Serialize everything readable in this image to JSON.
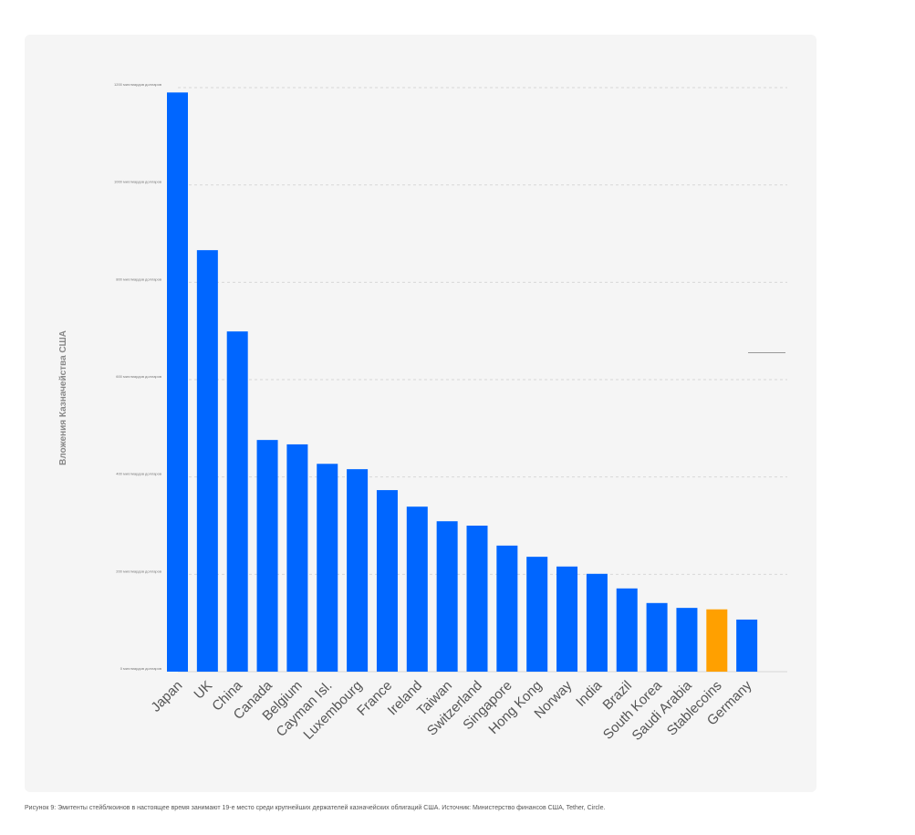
{
  "chart_data": {
    "type": "bar",
    "title": "",
    "ylabel": "Вложения Казначейства США",
    "xlabel": "",
    "ylim": [
      0,
      1200
    ],
    "grid": true,
    "yticks": [
      {
        "value": 0,
        "label": "0 миллиардов долларов"
      },
      {
        "value": 200,
        "label": "200 миллиардов долларов"
      },
      {
        "value": 400,
        "label": "400 миллиардов долларов"
      },
      {
        "value": 600,
        "label": "600 миллиардов долларов"
      },
      {
        "value": 800,
        "label": "800 миллиардов долларов"
      },
      {
        "value": 1000,
        "label": "1000 миллиардов долларов"
      },
      {
        "value": 1200,
        "label": "1200 миллиардов долларов"
      }
    ],
    "categories": [
      "Japan",
      "UK",
      "China",
      "Canada",
      "Belgium",
      "Cayman Isl.",
      "Luxembourg",
      "France",
      "Ireland",
      "Taiwan",
      "Switzerland",
      "Singapore",
      "Hong Kong",
      "Norway",
      "India",
      "Brazil",
      "South Korea",
      "Saudi Arabia",
      "Stablecoins",
      "Germany"
    ],
    "values": [
      1190,
      866,
      699,
      476,
      467,
      427,
      416,
      373,
      339,
      309,
      300,
      259,
      236,
      216,
      201,
      171,
      141,
      131,
      128,
      107
    ],
    "highlight": "Stablecoins",
    "colors": {
      "default": "#0066ff",
      "highlight": "#ffa000"
    }
  },
  "caption": "Рисунок 9: Эмитенты стейблкоинов в настоящее время занимают 19-е место среди крупнейших держателей казначейских облигаций США. Источник: Министерство финансов США, Tether, Circle."
}
